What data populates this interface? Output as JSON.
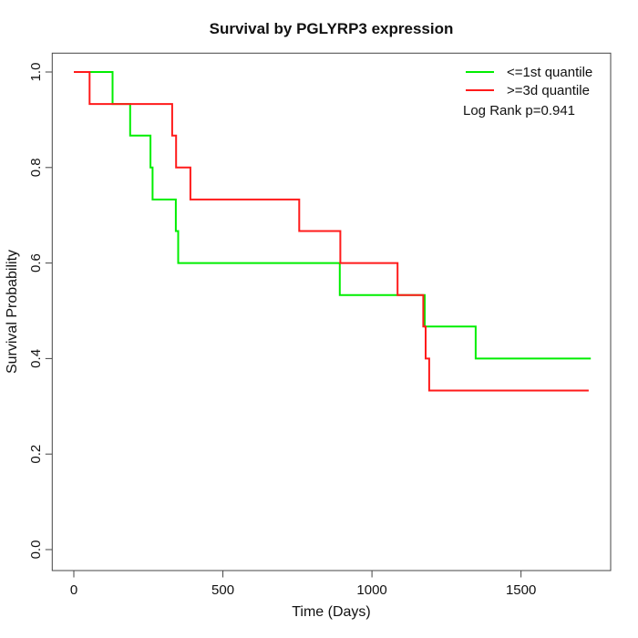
{
  "chart_data": {
    "type": "line",
    "subtype": "kaplan_meier_step",
    "title": "Survival by PGLYRP3 expression",
    "xlabel": "Time (Days)",
    "ylabel": "Survival Probability",
    "x_ticks": [
      0,
      500,
      1000,
      1500
    ],
    "y_tick_labels": [
      "0.0",
      "0.2",
      "0.4",
      "0.6",
      "0.8",
      "1.0"
    ],
    "xlim": [
      0,
      1800
    ],
    "ylim": [
      0,
      1
    ],
    "grid": false,
    "legend_position": "top-right",
    "annotation": "Log Rank p=0.941",
    "series": [
      {
        "name": "<=1st quantile",
        "color": "#00ee00",
        "steps": [
          [
            0,
            1.0
          ],
          [
            130,
            0.933
          ],
          [
            189,
            0.867
          ],
          [
            257,
            0.8
          ],
          [
            264,
            0.733
          ],
          [
            342,
            0.667
          ],
          [
            350,
            0.6
          ],
          [
            892,
            0.533
          ],
          [
            1177,
            0.467
          ],
          [
            1348,
            0.4
          ]
        ],
        "end_time": 1734
      },
      {
        "name": ">=3d quantile",
        "color": "#ff1a1a",
        "steps": [
          [
            0,
            1.0
          ],
          [
            53,
            0.933
          ],
          [
            330,
            0.867
          ],
          [
            343,
            0.8
          ],
          [
            391,
            0.733
          ],
          [
            756,
            0.667
          ],
          [
            894,
            0.6
          ],
          [
            1086,
            0.533
          ],
          [
            1172,
            0.467
          ],
          [
            1180,
            0.4
          ],
          [
            1192,
            0.333
          ]
        ],
        "end_time": 1727
      }
    ]
  }
}
